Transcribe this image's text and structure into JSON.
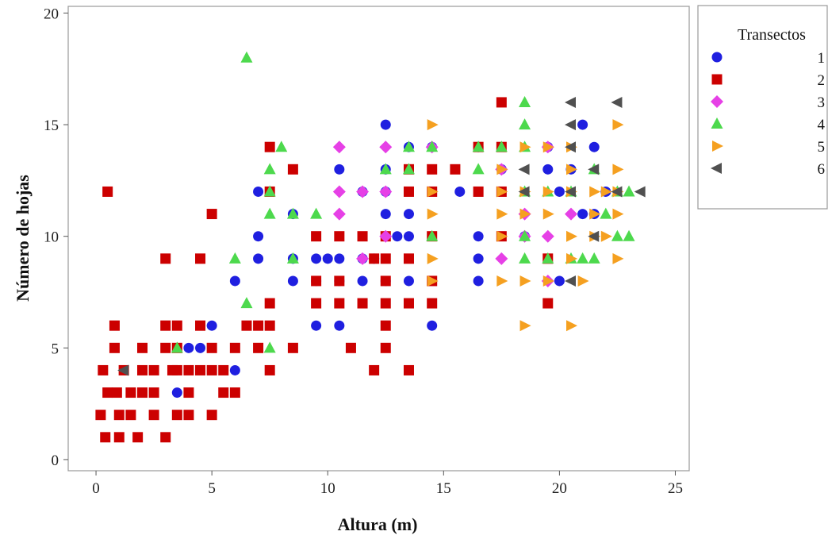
{
  "chart_data": {
    "type": "scatter",
    "title": "",
    "xlabel": "Altura (m)",
    "ylabel": "Número de hojas",
    "xlim": [
      -1.2,
      25.6
    ],
    "ylim": [
      -0.5,
      20.3
    ],
    "xticks": [
      0,
      5,
      10,
      15,
      20,
      25
    ],
    "yticks": [
      0,
      5,
      10,
      15,
      20
    ],
    "grid": false,
    "legend": {
      "title": "Transectos",
      "position": "right-outside"
    },
    "series": [
      {
        "name": "1",
        "marker": "circle",
        "color": "#1f1fe0",
        "points": [
          [
            3.5,
            3
          ],
          [
            4,
            5
          ],
          [
            4.5,
            5
          ],
          [
            5,
            6
          ],
          [
            6,
            8
          ],
          [
            6,
            4
          ],
          [
            7,
            12
          ],
          [
            7,
            10
          ],
          [
            7,
            9
          ],
          [
            8.5,
            11
          ],
          [
            8.5,
            9
          ],
          [
            8.5,
            8
          ],
          [
            9.5,
            9
          ],
          [
            9.5,
            8
          ],
          [
            9.5,
            6
          ],
          [
            10,
            9
          ],
          [
            10.5,
            13
          ],
          [
            10.5,
            9
          ],
          [
            10.5,
            8
          ],
          [
            10.5,
            6
          ],
          [
            11.5,
            12
          ],
          [
            11.5,
            9
          ],
          [
            11.5,
            8
          ],
          [
            12,
            9
          ],
          [
            12.5,
            15
          ],
          [
            12.5,
            13
          ],
          [
            12.5,
            12
          ],
          [
            12.5,
            11
          ],
          [
            12.5,
            8
          ],
          [
            13,
            10
          ],
          [
            13.5,
            14
          ],
          [
            13.5,
            11
          ],
          [
            13.5,
            10
          ],
          [
            13.5,
            8
          ],
          [
            14.5,
            14
          ],
          [
            14.5,
            6
          ],
          [
            15.7,
            12
          ],
          [
            16.5,
            14
          ],
          [
            16.5,
            10
          ],
          [
            16.5,
            9
          ],
          [
            16.5,
            8
          ],
          [
            17.5,
            13
          ],
          [
            18.5,
            10
          ],
          [
            19.5,
            14
          ],
          [
            19.5,
            13
          ],
          [
            20,
            12
          ],
          [
            20,
            8
          ],
          [
            20.5,
            13
          ],
          [
            21,
            15
          ],
          [
            21,
            11
          ],
          [
            21.5,
            14
          ],
          [
            21.5,
            11
          ],
          [
            22,
            12
          ]
        ]
      },
      {
        "name": "2",
        "marker": "square",
        "color": "#cc0000",
        "points": [
          [
            0.2,
            2
          ],
          [
            0.3,
            4
          ],
          [
            0.4,
            1
          ],
          [
            0.5,
            12
          ],
          [
            0.5,
            3
          ],
          [
            0.8,
            6
          ],
          [
            0.8,
            5
          ],
          [
            0.9,
            3
          ],
          [
            1,
            2
          ],
          [
            1,
            1
          ],
          [
            1.2,
            4
          ],
          [
            1.5,
            3
          ],
          [
            1.5,
            2
          ],
          [
            1.8,
            1
          ],
          [
            2,
            5
          ],
          [
            2,
            4
          ],
          [
            2,
            3
          ],
          [
            2.5,
            2
          ],
          [
            2.5,
            4
          ],
          [
            2.5,
            3
          ],
          [
            3,
            9
          ],
          [
            3,
            6
          ],
          [
            3,
            5
          ],
          [
            3,
            1
          ],
          [
            3.3,
            4
          ],
          [
            3.5,
            6
          ],
          [
            3.5,
            5
          ],
          [
            3.5,
            4
          ],
          [
            3.5,
            2
          ],
          [
            4,
            4
          ],
          [
            4,
            3
          ],
          [
            4,
            2
          ],
          [
            4.5,
            9
          ],
          [
            4.5,
            6
          ],
          [
            4.5,
            4
          ],
          [
            5,
            11
          ],
          [
            5,
            5
          ],
          [
            5,
            4
          ],
          [
            5,
            2
          ],
          [
            5.5,
            4
          ],
          [
            5.5,
            3
          ],
          [
            6,
            5
          ],
          [
            6,
            3
          ],
          [
            6.5,
            6
          ],
          [
            7,
            6
          ],
          [
            7,
            5
          ],
          [
            7.5,
            14
          ],
          [
            7.5,
            12
          ],
          [
            7.5,
            7
          ],
          [
            7.5,
            6
          ],
          [
            7.5,
            4
          ],
          [
            8.5,
            13
          ],
          [
            8.5,
            5
          ],
          [
            9.5,
            10
          ],
          [
            9.5,
            8
          ],
          [
            9.5,
            7
          ],
          [
            10.5,
            10
          ],
          [
            10.5,
            8
          ],
          [
            10.5,
            7
          ],
          [
            11,
            5
          ],
          [
            11.5,
            10
          ],
          [
            11.5,
            7
          ],
          [
            12,
            9
          ],
          [
            12,
            4
          ],
          [
            12.5,
            10
          ],
          [
            12.5,
            9
          ],
          [
            12.5,
            8
          ],
          [
            12.5,
            7
          ],
          [
            12.5,
            6
          ],
          [
            12.5,
            5
          ],
          [
            13.5,
            13
          ],
          [
            13.5,
            12
          ],
          [
            13.5,
            9
          ],
          [
            13.5,
            7
          ],
          [
            13.5,
            4
          ],
          [
            14.5,
            13
          ],
          [
            14.5,
            12
          ],
          [
            14.5,
            10
          ],
          [
            14.5,
            8
          ],
          [
            14.5,
            7
          ],
          [
            15.5,
            13
          ],
          [
            16.5,
            14
          ],
          [
            16.5,
            12
          ],
          [
            17.5,
            16
          ],
          [
            17.5,
            14
          ],
          [
            17.5,
            12
          ],
          [
            17.5,
            10
          ],
          [
            19.5,
            9
          ],
          [
            19.5,
            7
          ]
        ]
      },
      {
        "name": "3",
        "marker": "diamond",
        "color": "#e640e6",
        "points": [
          [
            10.5,
            14
          ],
          [
            10.5,
            12
          ],
          [
            10.5,
            11
          ],
          [
            11.5,
            12
          ],
          [
            11.5,
            9
          ],
          [
            12.5,
            14
          ],
          [
            12.5,
            12
          ],
          [
            12.5,
            10
          ],
          [
            14.5,
            14
          ],
          [
            17.5,
            13
          ],
          [
            17.5,
            9
          ],
          [
            18.5,
            11
          ],
          [
            18.5,
            10
          ],
          [
            19.5,
            14
          ],
          [
            19.5,
            10
          ],
          [
            19.5,
            8
          ],
          [
            20.5,
            11
          ]
        ]
      },
      {
        "name": "4",
        "marker": "triangle-up",
        "color": "#4dd94d",
        "points": [
          [
            3.5,
            5
          ],
          [
            6,
            9
          ],
          [
            6.5,
            18
          ],
          [
            6.5,
            7
          ],
          [
            7.5,
            13
          ],
          [
            7.5,
            12
          ],
          [
            7.5,
            11
          ],
          [
            7.5,
            5
          ],
          [
            8,
            14
          ],
          [
            8.5,
            11
          ],
          [
            8.5,
            9
          ],
          [
            9.5,
            11
          ],
          [
            12.5,
            13
          ],
          [
            13.5,
            14
          ],
          [
            13.5,
            13
          ],
          [
            14.5,
            14
          ],
          [
            14.5,
            10
          ],
          [
            16.5,
            14
          ],
          [
            16.5,
            13
          ],
          [
            17.5,
            14
          ],
          [
            18.5,
            16
          ],
          [
            18.5,
            15
          ],
          [
            18.5,
            14
          ],
          [
            18.5,
            12
          ],
          [
            18.5,
            10
          ],
          [
            18.5,
            9
          ],
          [
            19.5,
            12
          ],
          [
            19.5,
            9
          ],
          [
            20.5,
            12
          ],
          [
            20.5,
            9
          ],
          [
            21,
            9
          ],
          [
            21.5,
            13
          ],
          [
            21.5,
            9
          ],
          [
            22,
            11
          ],
          [
            22.5,
            12
          ],
          [
            22.5,
            10
          ],
          [
            23,
            12
          ],
          [
            23,
            10
          ]
        ]
      },
      {
        "name": "5",
        "marker": "triangle-right",
        "color": "#f5a020",
        "points": [
          [
            14.5,
            15
          ],
          [
            14.5,
            12
          ],
          [
            14.5,
            11
          ],
          [
            14.5,
            9
          ],
          [
            14.5,
            8
          ],
          [
            17.5,
            13
          ],
          [
            17.5,
            12
          ],
          [
            17.5,
            11
          ],
          [
            17.5,
            10
          ],
          [
            17.5,
            8
          ],
          [
            18.5,
            14
          ],
          [
            18.5,
            12
          ],
          [
            18.5,
            11
          ],
          [
            18.5,
            8
          ],
          [
            18.5,
            6
          ],
          [
            19.5,
            14
          ],
          [
            19.5,
            12
          ],
          [
            19.5,
            11
          ],
          [
            19.5,
            8
          ],
          [
            20.5,
            14
          ],
          [
            20.5,
            13
          ],
          [
            20.5,
            12
          ],
          [
            20.5,
            10
          ],
          [
            20.5,
            9
          ],
          [
            20.5,
            6
          ],
          [
            21,
            8
          ],
          [
            21.5,
            12
          ],
          [
            21.5,
            11
          ],
          [
            21.5,
            10
          ],
          [
            22,
            12
          ],
          [
            22,
            10
          ],
          [
            22.5,
            15
          ],
          [
            22.5,
            13
          ],
          [
            22.5,
            12
          ],
          [
            22.5,
            11
          ],
          [
            22.5,
            9
          ]
        ]
      },
      {
        "name": "6",
        "marker": "triangle-left",
        "color": "#505050",
        "points": [
          [
            1.2,
            4
          ],
          [
            18.5,
            13
          ],
          [
            18.5,
            12
          ],
          [
            20.5,
            16
          ],
          [
            20.5,
            15
          ],
          [
            20.5,
            14
          ],
          [
            20.5,
            12
          ],
          [
            20.5,
            8
          ],
          [
            21.5,
            13
          ],
          [
            21.5,
            10
          ],
          [
            22.5,
            16
          ],
          [
            22.5,
            12
          ],
          [
            23.5,
            12
          ]
        ]
      }
    ]
  }
}
